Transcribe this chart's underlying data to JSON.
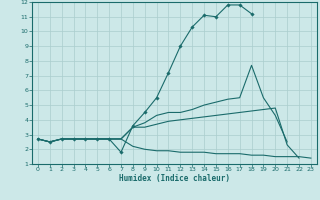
{
  "xlabel": "Humidex (Indice chaleur)",
  "xlim": [
    -0.5,
    23.5
  ],
  "ylim": [
    1,
    12
  ],
  "xticks": [
    0,
    1,
    2,
    3,
    4,
    5,
    6,
    7,
    8,
    9,
    10,
    11,
    12,
    13,
    14,
    15,
    16,
    17,
    18,
    19,
    20,
    21,
    22,
    23
  ],
  "yticks": [
    1,
    2,
    3,
    4,
    5,
    6,
    7,
    8,
    9,
    10,
    11,
    12
  ],
  "background_color": "#cce8e8",
  "line_color": "#1a6b6b",
  "grid_color": "#aacece",
  "line1_x": [
    0,
    1,
    2,
    3,
    4,
    5,
    6,
    7,
    8,
    9,
    10,
    11,
    12,
    13,
    14,
    15,
    16,
    17,
    18
  ],
  "line1_y": [
    2.7,
    2.5,
    2.7,
    2.7,
    2.7,
    2.7,
    2.7,
    1.8,
    3.6,
    4.5,
    5.5,
    7.2,
    9.0,
    10.3,
    11.1,
    11.0,
    11.8,
    11.8,
    11.2
  ],
  "line2_x": [
    0,
    1,
    2,
    3,
    4,
    5,
    6,
    7,
    8,
    9,
    10,
    11,
    12,
    13,
    14,
    15,
    16,
    17,
    18,
    19,
    20,
    21
  ],
  "line2_y": [
    2.7,
    2.5,
    2.7,
    2.7,
    2.7,
    2.7,
    2.7,
    2.7,
    3.5,
    3.8,
    4.3,
    4.5,
    4.5,
    4.7,
    5.0,
    5.2,
    5.4,
    5.5,
    7.7,
    5.5,
    4.3,
    2.5
  ],
  "line3_x": [
    0,
    1,
    2,
    3,
    4,
    5,
    6,
    7,
    8,
    9,
    10,
    11,
    12,
    13,
    14,
    15,
    16,
    17,
    18,
    19,
    20,
    21,
    22
  ],
  "line3_y": [
    2.7,
    2.5,
    2.7,
    2.7,
    2.7,
    2.7,
    2.7,
    2.7,
    3.5,
    3.5,
    3.7,
    3.9,
    4.0,
    4.1,
    4.2,
    4.3,
    4.4,
    4.5,
    4.6,
    4.7,
    4.8,
    2.3,
    1.4
  ],
  "line4_x": [
    0,
    1,
    2,
    3,
    4,
    5,
    6,
    7,
    8,
    9,
    10,
    11,
    12,
    13,
    14,
    15,
    16,
    17,
    18,
    19,
    20,
    21,
    22,
    23
  ],
  "line4_y": [
    2.7,
    2.5,
    2.7,
    2.7,
    2.7,
    2.7,
    2.7,
    2.7,
    2.2,
    2.0,
    1.9,
    1.9,
    1.8,
    1.8,
    1.8,
    1.7,
    1.7,
    1.7,
    1.6,
    1.6,
    1.5,
    1.5,
    1.5,
    1.4
  ]
}
